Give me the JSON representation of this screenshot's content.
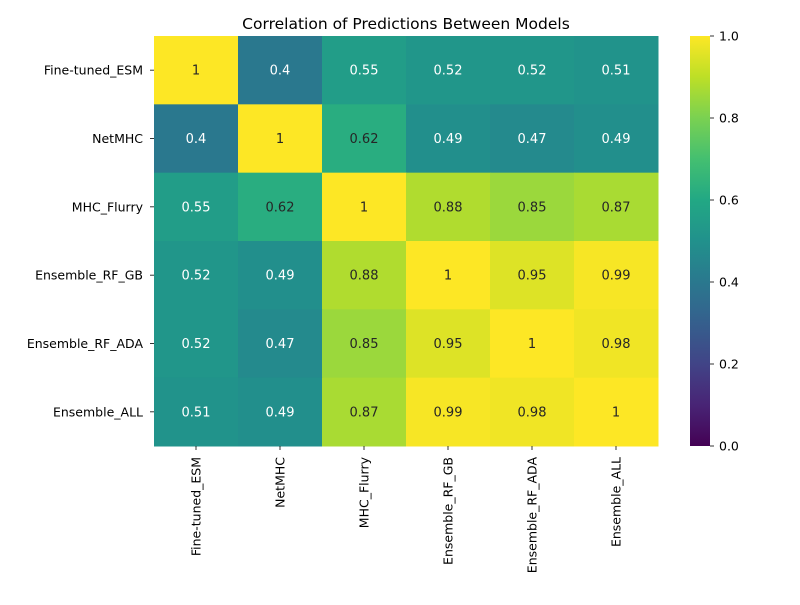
{
  "chart_data": {
    "type": "heatmap",
    "title": "Correlation of Predictions Between Models",
    "xlabel": "",
    "ylabel": "",
    "rows": [
      "Fine-tuned_ESM",
      "NetMHC",
      "MHC_Flurry",
      "Ensemble_RF_GB",
      "Ensemble_RF_ADA",
      "Ensemble_ALL"
    ],
    "columns": [
      "Fine-tuned_ESM",
      "NetMHC",
      "MHC_Flurry",
      "Ensemble_RF_GB",
      "Ensemble_RF_ADA",
      "Ensemble_ALL"
    ],
    "values": [
      [
        1,
        0.4,
        0.55,
        0.52,
        0.52,
        0.51
      ],
      [
        0.4,
        1,
        0.62,
        0.49,
        0.47,
        0.49
      ],
      [
        0.55,
        0.62,
        1,
        0.88,
        0.85,
        0.87
      ],
      [
        0.52,
        0.49,
        0.88,
        1,
        0.95,
        0.99
      ],
      [
        0.52,
        0.47,
        0.85,
        0.95,
        1,
        0.98
      ],
      [
        0.51,
        0.49,
        0.87,
        0.99,
        0.98,
        1
      ]
    ],
    "labels": [
      [
        "1",
        "0.4",
        "0.55",
        "0.52",
        "0.52",
        "0.51"
      ],
      [
        "0.4",
        "1",
        "0.62",
        "0.49",
        "0.47",
        "0.49"
      ],
      [
        "0.55",
        "0.62",
        "1",
        "0.88",
        "0.85",
        "0.87"
      ],
      [
        "0.52",
        "0.49",
        "0.88",
        "1",
        "0.95",
        "0.99"
      ],
      [
        "0.52",
        "0.47",
        "0.85",
        "0.95",
        "1",
        "0.98"
      ],
      [
        "0.51",
        "0.49",
        "0.87",
        "0.99",
        "0.98",
        "1"
      ]
    ],
    "colormap": "viridis",
    "vmin": 0,
    "vmax": 1,
    "colorbar": {
      "ticks": [
        0,
        0.2,
        0.4,
        0.6,
        0.8,
        1
      ],
      "tick_labels": [
        "0.0",
        "0.2",
        "0.4",
        "0.6",
        "0.8",
        "1.0"
      ]
    },
    "grid": false,
    "legend": "colorbar-right"
  }
}
